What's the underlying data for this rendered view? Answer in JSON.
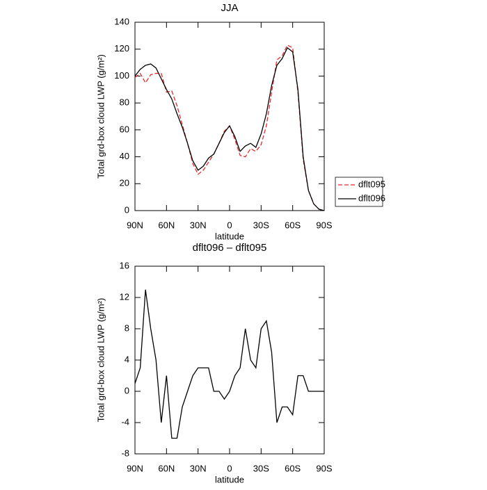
{
  "chart_data": [
    {
      "type": "line",
      "title": "JJA",
      "xlabel": "latitude",
      "ylabel": "Total grd-box cloud LWP (g/m²)",
      "x": [
        90,
        85,
        80,
        75,
        70,
        65,
        60,
        55,
        50,
        45,
        40,
        35,
        30,
        25,
        20,
        15,
        10,
        5,
        0,
        -5,
        -10,
        -15,
        -20,
        -25,
        -30,
        -35,
        -40,
        -45,
        -50,
        -55,
        -60,
        -65,
        -70,
        -75,
        -80,
        -85,
        -90
      ],
      "series": [
        {
          "name": "dflt095",
          "color": "#e8282b",
          "linestyle": "dashed",
          "values": [
            99,
            102,
            95,
            101,
            102,
            102,
            88,
            89,
            78,
            64,
            50,
            35,
            27,
            30,
            36,
            42,
            50,
            59,
            63,
            53,
            41,
            40,
            46,
            44,
            49,
            63,
            88,
            112,
            115,
            123,
            121,
            88,
            38,
            15,
            5,
            1,
            0
          ]
        },
        {
          "name": "dflt096",
          "color": "#000000",
          "linestyle": "solid",
          "values": [
            100,
            105,
            108,
            109,
            106,
            98,
            90,
            83,
            72,
            62,
            50,
            37,
            30,
            33,
            39,
            42,
            50,
            58,
            63,
            55,
            44,
            48,
            50,
            47,
            57,
            72,
            93,
            108,
            113,
            121,
            118,
            90,
            40,
            15,
            5,
            1,
            0
          ]
        }
      ],
      "xlim": [
        90,
        -90
      ],
      "xticks": [
        {
          "value": 90,
          "label": "90N"
        },
        {
          "value": 60,
          "label": "60N"
        },
        {
          "value": 30,
          "label": "30N"
        },
        0,
        {
          "value": -30,
          "label": "30S"
        },
        {
          "value": -60,
          "label": "60S"
        },
        {
          "value": -90,
          "label": "90S"
        }
      ],
      "ylim": [
        0,
        140
      ],
      "yticks": [
        0,
        20,
        40,
        60,
        80,
        100,
        120,
        140
      ],
      "legend": "outside-right"
    },
    {
      "type": "line",
      "title": "dflt096 – dflt095",
      "xlabel": "latitude",
      "ylabel": "Total grd-box cloud LWP (g/m²)",
      "x": [
        90,
        85,
        80,
        75,
        70,
        65,
        60,
        55,
        50,
        45,
        40,
        35,
        30,
        25,
        20,
        15,
        10,
        5,
        0,
        -5,
        -10,
        -15,
        -20,
        -25,
        -30,
        -35,
        -40,
        -45,
        -50,
        -55,
        -60,
        -65,
        -70,
        -75,
        -80,
        -85,
        -90
      ],
      "values": [
        1,
        3,
        13,
        8,
        4,
        -4,
        2,
        -6,
        -6,
        -2,
        0,
        2,
        3,
        3,
        3,
        0,
        0,
        -1,
        0,
        2,
        3,
        8,
        4,
        3,
        8,
        9,
        5,
        -4,
        -2,
        -2,
        -3,
        2,
        2,
        0,
        0,
        0,
        0
      ],
      "color": "#000000",
      "xlim": [
        90,
        -90
      ],
      "xticks": [
        {
          "value": 90,
          "label": "90N"
        },
        {
          "value": 60,
          "label": "60N"
        },
        {
          "value": 30,
          "label": "30N"
        },
        0,
        {
          "value": -30,
          "label": "30S"
        },
        {
          "value": -60,
          "label": "60S"
        },
        {
          "value": -90,
          "label": "90S"
        }
      ],
      "ylim": [
        -8,
        16
      ],
      "yticks": [
        -8,
        -4,
        0,
        4,
        8,
        12,
        16
      ]
    }
  ]
}
